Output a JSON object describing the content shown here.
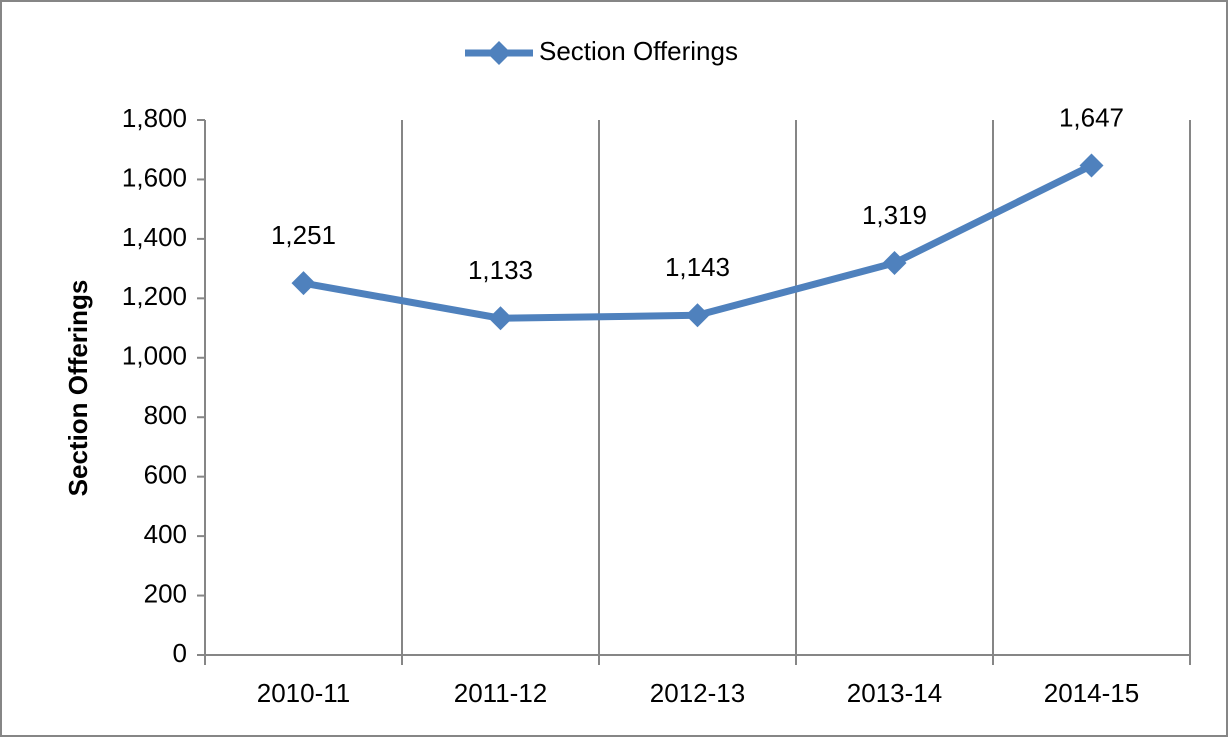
{
  "chart_data": {
    "type": "line",
    "categories": [
      "2010-11",
      "2011-12",
      "2012-13",
      "2013-14",
      "2014-15"
    ],
    "series": [
      {
        "name": "Section Offerings",
        "color": "#4f81bd",
        "values": [
          1251,
          1133,
          1143,
          1319,
          1647
        ],
        "value_labels": [
          "1,251",
          "1,133",
          "1,143",
          "1,319",
          "1,647"
        ]
      }
    ],
    "y_label": "Section Offerings",
    "ylim": [
      0,
      1800
    ],
    "yticks": [
      0,
      200,
      400,
      600,
      800,
      {
        "value": 1000,
        "label": "1,000"
      },
      {
        "value": 1200,
        "label": "1,200"
      },
      {
        "value": 1400,
        "label": "1,400"
      },
      {
        "value": 1600,
        "label": "1,600"
      },
      {
        "value": 1800,
        "label": "1,800"
      }
    ],
    "xgrid": true,
    "ygrid": false,
    "legend": "top"
  }
}
